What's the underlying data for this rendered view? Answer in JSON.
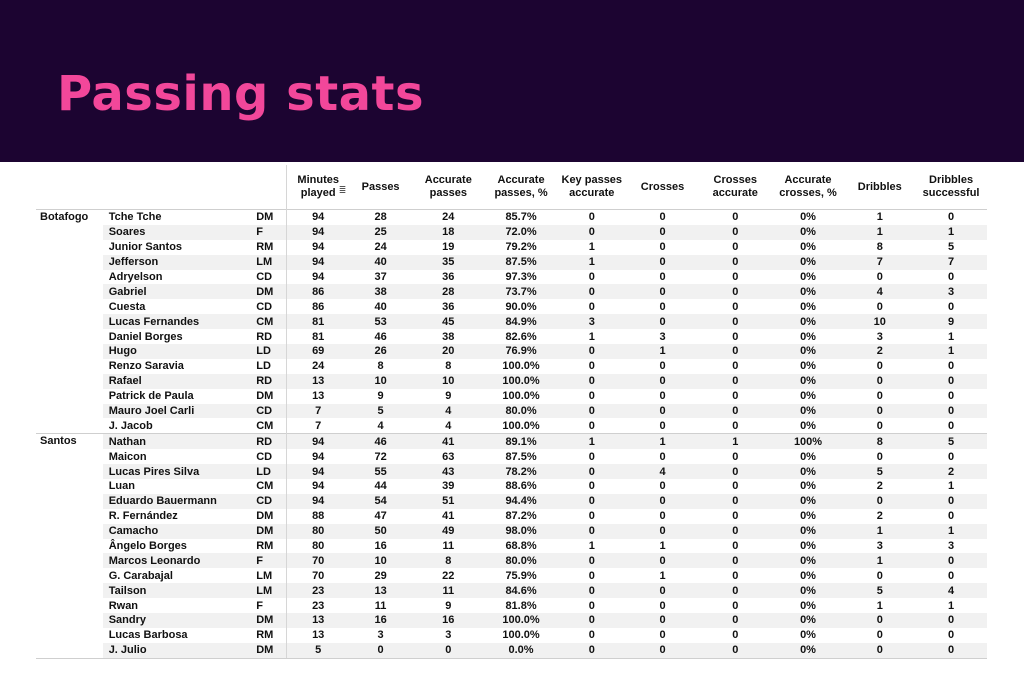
{
  "title": "Passing stats",
  "table": {
    "columns": [
      "Minutes played",
      "Passes",
      "Accurate passes",
      "Accurate passes, %",
      "Key passes accurate",
      "Crosses",
      "Crosses accurate",
      "Accurate crosses, %",
      "Dribbles",
      "Dribbles successful"
    ],
    "sort_icon": "sort-descending-icon",
    "rows": [
      {
        "team": "Botafogo",
        "player": "Tche Tche",
        "pos": "DM",
        "values": [
          "94",
          "28",
          "24",
          "85.7%",
          "0",
          "0",
          "0",
          "0%",
          "1",
          "0"
        ]
      },
      {
        "team": "",
        "player": "Soares",
        "pos": "F",
        "values": [
          "94",
          "25",
          "18",
          "72.0%",
          "0",
          "0",
          "0",
          "0%",
          "1",
          "1"
        ]
      },
      {
        "team": "",
        "player": "Junior Santos",
        "pos": "RM",
        "values": [
          "94",
          "24",
          "19",
          "79.2%",
          "1",
          "0",
          "0",
          "0%",
          "8",
          "5"
        ]
      },
      {
        "team": "",
        "player": "Jefferson",
        "pos": "LM",
        "values": [
          "94",
          "40",
          "35",
          "87.5%",
          "1",
          "0",
          "0",
          "0%",
          "7",
          "7"
        ]
      },
      {
        "team": "",
        "player": "Adryelson",
        "pos": "CD",
        "values": [
          "94",
          "37",
          "36",
          "97.3%",
          "0",
          "0",
          "0",
          "0%",
          "0",
          "0"
        ]
      },
      {
        "team": "",
        "player": "Gabriel",
        "pos": "DM",
        "values": [
          "86",
          "38",
          "28",
          "73.7%",
          "0",
          "0",
          "0",
          "0%",
          "4",
          "3"
        ]
      },
      {
        "team": "",
        "player": "Cuesta",
        "pos": "CD",
        "values": [
          "86",
          "40",
          "36",
          "90.0%",
          "0",
          "0",
          "0",
          "0%",
          "0",
          "0"
        ]
      },
      {
        "team": "",
        "player": "Lucas Fernandes",
        "pos": "CM",
        "values": [
          "81",
          "53",
          "45",
          "84.9%",
          "3",
          "0",
          "0",
          "0%",
          "10",
          "9"
        ]
      },
      {
        "team": "",
        "player": "Daniel Borges",
        "pos": "RD",
        "values": [
          "81",
          "46",
          "38",
          "82.6%",
          "1",
          "3",
          "0",
          "0%",
          "3",
          "1"
        ]
      },
      {
        "team": "",
        "player": "Hugo",
        "pos": "LD",
        "values": [
          "69",
          "26",
          "20",
          "76.9%",
          "0",
          "1",
          "0",
          "0%",
          "2",
          "1"
        ]
      },
      {
        "team": "",
        "player": "Renzo Saravia",
        "pos": "LD",
        "values": [
          "24",
          "8",
          "8",
          "100.0%",
          "0",
          "0",
          "0",
          "0%",
          "0",
          "0"
        ]
      },
      {
        "team": "",
        "player": "Rafael",
        "pos": "RD",
        "values": [
          "13",
          "10",
          "10",
          "100.0%",
          "0",
          "0",
          "0",
          "0%",
          "0",
          "0"
        ]
      },
      {
        "team": "",
        "player": "Patrick de Paula",
        "pos": "DM",
        "values": [
          "13",
          "9",
          "9",
          "100.0%",
          "0",
          "0",
          "0",
          "0%",
          "0",
          "0"
        ]
      },
      {
        "team": "",
        "player": "Mauro Joel Carli",
        "pos": "CD",
        "values": [
          "7",
          "5",
          "4",
          "80.0%",
          "0",
          "0",
          "0",
          "0%",
          "0",
          "0"
        ]
      },
      {
        "team": "",
        "player": "J. Jacob",
        "pos": "CM",
        "values": [
          "7",
          "4",
          "4",
          "100.0%",
          "0",
          "0",
          "0",
          "0%",
          "0",
          "0"
        ]
      },
      {
        "team": "Santos",
        "player": "Nathan",
        "pos": "RD",
        "values": [
          "94",
          "46",
          "41",
          "89.1%",
          "1",
          "1",
          "1",
          "100%",
          "8",
          "5"
        ]
      },
      {
        "team": "",
        "player": "Maicon",
        "pos": "CD",
        "values": [
          "94",
          "72",
          "63",
          "87.5%",
          "0",
          "0",
          "0",
          "0%",
          "0",
          "0"
        ]
      },
      {
        "team": "",
        "player": "Lucas Pires Silva",
        "pos": "LD",
        "values": [
          "94",
          "55",
          "43",
          "78.2%",
          "0",
          "4",
          "0",
          "0%",
          "5",
          "2"
        ]
      },
      {
        "team": "",
        "player": "Luan",
        "pos": "CM",
        "values": [
          "94",
          "44",
          "39",
          "88.6%",
          "0",
          "0",
          "0",
          "0%",
          "2",
          "1"
        ]
      },
      {
        "team": "",
        "player": "Eduardo Bauermann",
        "pos": "CD",
        "values": [
          "94",
          "54",
          "51",
          "94.4%",
          "0",
          "0",
          "0",
          "0%",
          "0",
          "0"
        ]
      },
      {
        "team": "",
        "player": "R. Fernández",
        "pos": "DM",
        "values": [
          "88",
          "47",
          "41",
          "87.2%",
          "0",
          "0",
          "0",
          "0%",
          "2",
          "0"
        ]
      },
      {
        "team": "",
        "player": "Camacho",
        "pos": "DM",
        "values": [
          "80",
          "50",
          "49",
          "98.0%",
          "0",
          "0",
          "0",
          "0%",
          "1",
          "1"
        ]
      },
      {
        "team": "",
        "player": "Ângelo Borges",
        "pos": "RM",
        "values": [
          "80",
          "16",
          "11",
          "68.8%",
          "1",
          "1",
          "0",
          "0%",
          "3",
          "3"
        ]
      },
      {
        "team": "",
        "player": "Marcos Leonardo",
        "pos": "F",
        "values": [
          "70",
          "10",
          "8",
          "80.0%",
          "0",
          "0",
          "0",
          "0%",
          "1",
          "0"
        ]
      },
      {
        "team": "",
        "player": "G. Carabajal",
        "pos": "LM",
        "values": [
          "70",
          "29",
          "22",
          "75.9%",
          "0",
          "1",
          "0",
          "0%",
          "0",
          "0"
        ]
      },
      {
        "team": "",
        "player": "Tailson",
        "pos": "LM",
        "values": [
          "23",
          "13",
          "11",
          "84.6%",
          "0",
          "0",
          "0",
          "0%",
          "5",
          "4"
        ]
      },
      {
        "team": "",
        "player": "Rwan",
        "pos": "F",
        "values": [
          "23",
          "11",
          "9",
          "81.8%",
          "0",
          "0",
          "0",
          "0%",
          "1",
          "1"
        ]
      },
      {
        "team": "",
        "player": "Sandry",
        "pos": "DM",
        "values": [
          "13",
          "16",
          "16",
          "100.0%",
          "0",
          "0",
          "0",
          "0%",
          "0",
          "0"
        ]
      },
      {
        "team": "",
        "player": "Lucas Barbosa",
        "pos": "RM",
        "values": [
          "13",
          "3",
          "3",
          "100.0%",
          "0",
          "0",
          "0",
          "0%",
          "0",
          "0"
        ]
      },
      {
        "team": "",
        "player": "J. Julio",
        "pos": "DM",
        "values": [
          "5",
          "0",
          "0",
          "0.0%",
          "0",
          "0",
          "0",
          "0%",
          "0",
          "0"
        ]
      }
    ]
  }
}
